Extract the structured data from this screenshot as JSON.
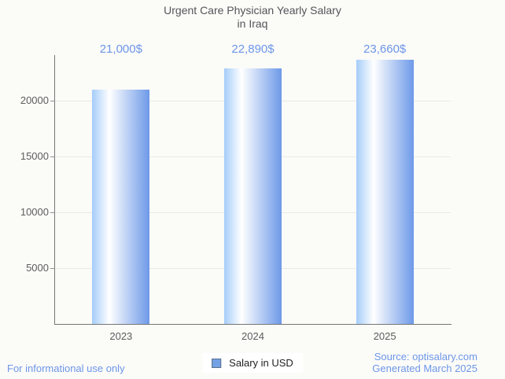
{
  "title": {
    "line1": "Urgent Care Physician Yearly Salary",
    "line2": "in Iraq"
  },
  "chart_data": {
    "type": "bar",
    "title": "Urgent Care Physician Yearly Salary in Iraq",
    "categories": [
      "2023",
      "2024",
      "2025"
    ],
    "series": [
      {
        "name": "Salary in USD",
        "values": [
          21000,
          22890,
          23660
        ]
      }
    ],
    "value_labels": [
      "21,000$",
      "22,890$",
      "23,660$"
    ],
    "xlabel": "",
    "ylabel": "",
    "ylim": [
      0,
      24085
    ],
    "yticks": [
      5000,
      10000,
      15000,
      20000
    ],
    "grid": true,
    "legend_position": "bottom"
  },
  "legend": {
    "label": "Salary in USD"
  },
  "footer": {
    "disclaimer": "For informational use only",
    "source_line1": "Source: optisalary.com",
    "source_line2": "Generated March 2025"
  },
  "colors": {
    "background": "#fbfbf8",
    "accent_blue": "#6d96e8",
    "bar_gradient_left": "#a5cdf9",
    "bar_gradient_mid": "#ffffff",
    "bar_gradient_right": "#6d99e8",
    "title_color": "#55555a",
    "axis_line": "#757575",
    "gridline": "#e9e9e9",
    "axis_label": "#5d5d5d",
    "legend_swatch": "#72a1e5"
  }
}
